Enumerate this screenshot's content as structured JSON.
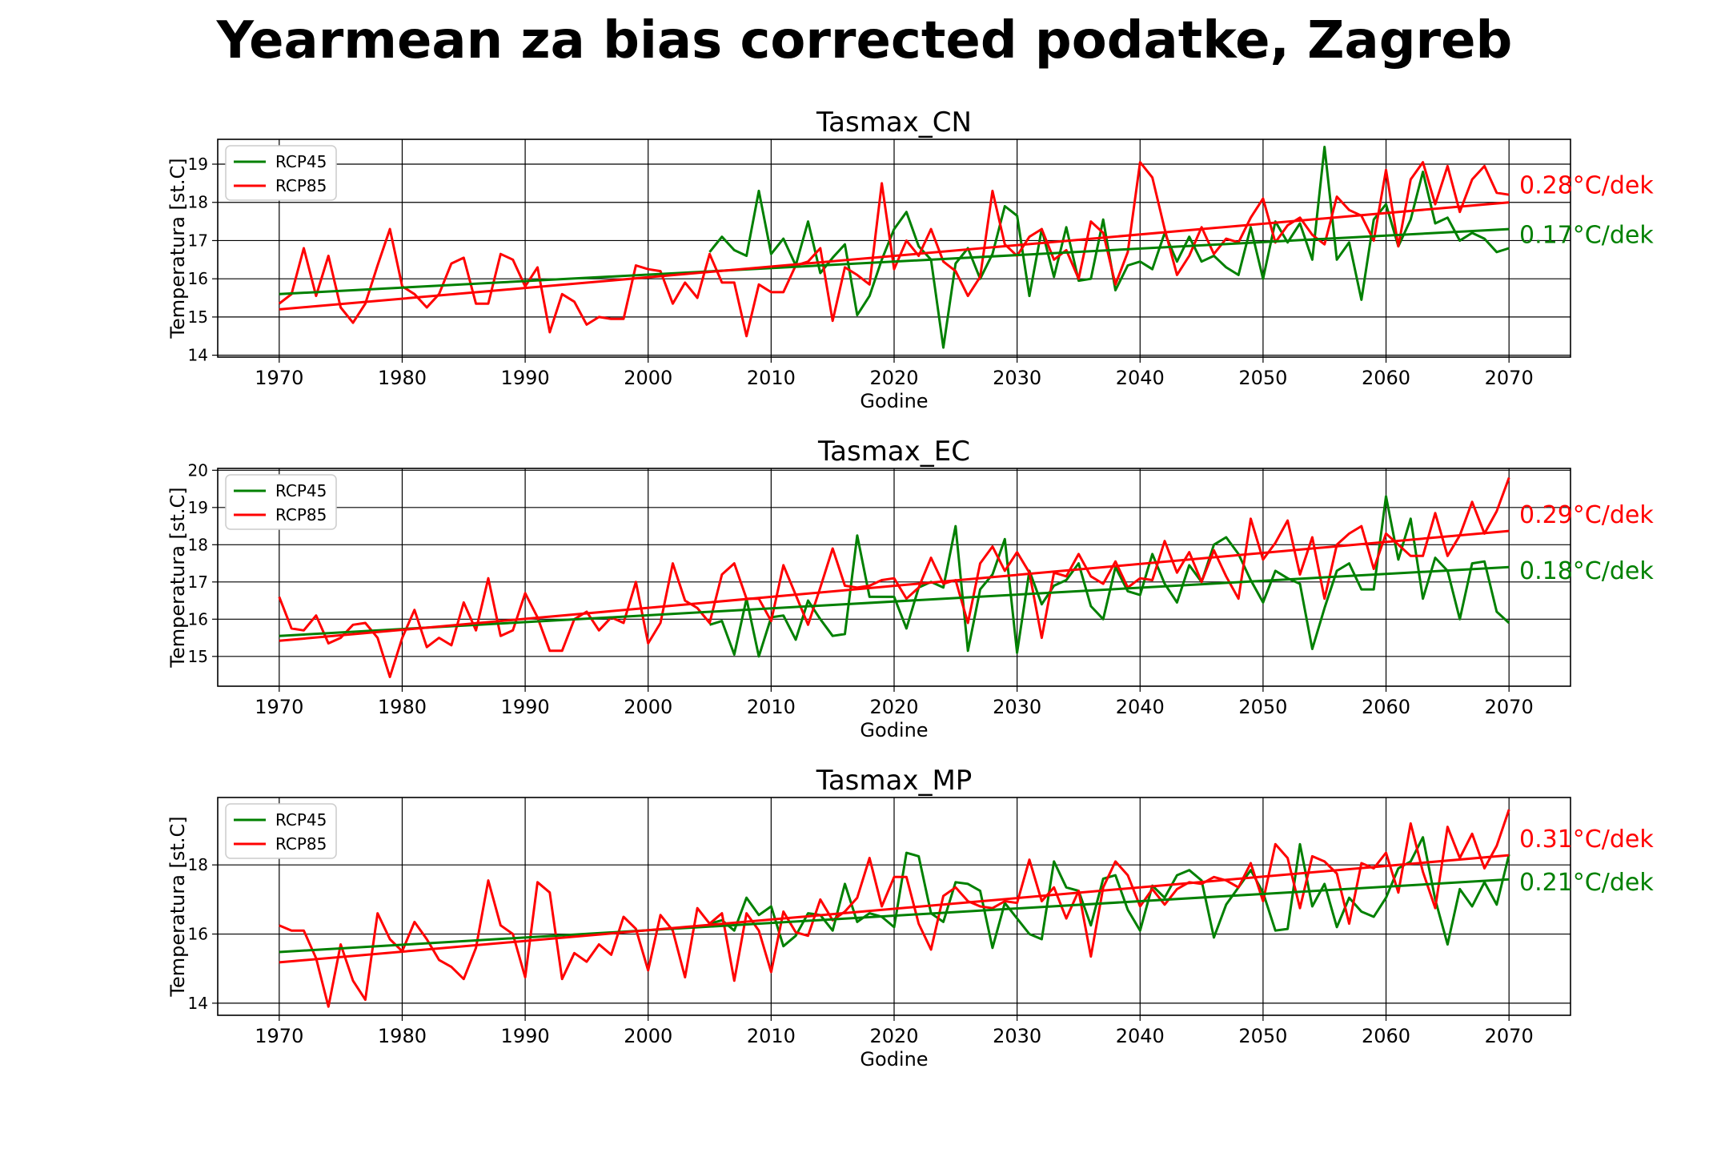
{
  "figure": {
    "title": "Yearmean za bias corrected podatke, Zagreb",
    "colors": {
      "RCP45": "#008000",
      "RCP85": "#ff0000",
      "grid": "#000000"
    }
  },
  "chart_data": [
    {
      "type": "line",
      "title": "Tasmax_CN",
      "xlabel": "Godine",
      "ylabel": "Temperatura [st.C]",
      "xlim": [
        1965,
        2075
      ],
      "ylim": [
        13.95,
        19.65
      ],
      "xticks": [
        1970,
        1980,
        1990,
        2000,
        2010,
        2020,
        2030,
        2040,
        2050,
        2060,
        2070
      ],
      "yticks": [
        14,
        15,
        16,
        17,
        18,
        19
      ],
      "grid": true,
      "legend": "upper-left",
      "series": [
        {
          "name": "RCP45",
          "color": "#008000",
          "x_start": 2005,
          "values": [
            16.7,
            17.1,
            16.75,
            16.6,
            18.3,
            16.65,
            17.05,
            16.35,
            17.5,
            16.15,
            16.55,
            16.9,
            15.05,
            15.55,
            16.5,
            17.3,
            17.75,
            16.85,
            16.5,
            14.2,
            16.4,
            16.8,
            16.0,
            16.65,
            17.9,
            17.65,
            15.55,
            17.3,
            16.05,
            17.35,
            15.95,
            16.0,
            17.55,
            15.7,
            16.35,
            16.45,
            16.25,
            17.2,
            16.45,
            17.1,
            16.45,
            16.6,
            16.3,
            16.1,
            17.35,
            16.0,
            17.5,
            16.95,
            17.45,
            16.5,
            19.45,
            16.5,
            16.95,
            15.45,
            17.55,
            17.95,
            16.85,
            17.55,
            18.8,
            17.45,
            17.6,
            17.0,
            17.2,
            17.05,
            16.7,
            16.8
          ]
        },
        {
          "name": "RCP85",
          "color": "#ff0000",
          "x_start": 1970,
          "values": [
            15.35,
            15.6,
            16.8,
            15.55,
            16.6,
            15.25,
            14.85,
            15.35,
            16.35,
            17.3,
            15.8,
            15.6,
            15.25,
            15.6,
            16.4,
            16.55,
            15.35,
            15.35,
            16.65,
            16.5,
            15.8,
            16.3,
            14.6,
            15.6,
            15.4,
            14.8,
            15.0,
            14.95,
            14.95,
            16.35,
            16.25,
            16.2,
            15.35,
            15.9,
            15.5,
            16.65,
            15.9,
            15.9,
            14.5,
            15.85,
            15.65,
            15.65,
            16.35,
            16.45,
            16.8,
            14.9,
            16.3,
            16.1,
            15.85,
            18.5,
            16.25,
            17.0,
            16.6,
            17.3,
            16.45,
            16.2,
            15.55,
            16.05,
            18.3,
            16.9,
            16.6,
            17.1,
            17.3,
            16.5,
            16.75,
            16.0,
            17.5,
            17.2,
            15.85,
            16.7,
            19.05,
            18.65,
            17.3,
            16.1,
            16.6,
            17.35,
            16.65,
            17.05,
            16.95,
            17.6,
            18.1,
            16.95,
            17.4,
            17.6,
            17.15,
            16.9,
            18.15,
            17.8,
            17.65,
            17.0,
            18.85,
            16.85,
            18.6,
            19.05,
            17.95,
            18.95,
            17.75,
            18.6,
            18.95,
            18.25,
            18.2
          ]
        },
        {
          "name": "trend RCP45",
          "color": "#008000",
          "x": [
            1970,
            2070
          ],
          "y": [
            15.6,
            17.3
          ]
        },
        {
          "name": "trend RCP85",
          "color": "#ff0000",
          "x": [
            1970,
            2070
          ],
          "y": [
            15.2,
            18.0
          ]
        }
      ],
      "annotations": [
        {
          "text": "0.28°C/dek",
          "color": "#ff0000",
          "y": 18.45
        },
        {
          "text": "0.17°C/dek",
          "color": "#008000",
          "y": 17.15
        }
      ]
    },
    {
      "type": "line",
      "title": "Tasmax_EC",
      "xlabel": "Godine",
      "ylabel": "Temperatura [st.C]",
      "xlim": [
        1965,
        2075
      ],
      "ylim": [
        14.2,
        20.05
      ],
      "xticks": [
        1970,
        1980,
        1990,
        2000,
        2010,
        2020,
        2030,
        2040,
        2050,
        2060,
        2070
      ],
      "yticks": [
        15,
        16,
        17,
        18,
        19,
        20
      ],
      "grid": true,
      "legend": "upper-left",
      "series": [
        {
          "name": "RCP45",
          "color": "#008000",
          "x_start": 2005,
          "values": [
            15.85,
            15.95,
            15.05,
            16.55,
            15.0,
            16.05,
            16.1,
            15.45,
            16.5,
            16.0,
            15.55,
            15.6,
            18.25,
            16.6,
            16.6,
            16.6,
            15.75,
            16.85,
            17.0,
            16.85,
            18.5,
            15.15,
            16.8,
            17.2,
            18.15,
            15.1,
            17.3,
            16.4,
            16.9,
            17.05,
            17.5,
            16.35,
            16.0,
            17.4,
            16.75,
            16.65,
            17.75,
            16.95,
            16.45,
            17.45,
            17.0,
            18.0,
            18.2,
            17.75,
            17.05,
            16.45,
            17.3,
            17.1,
            16.95,
            15.2,
            16.3,
            17.3,
            17.5,
            16.8,
            16.8,
            19.3,
            17.6,
            18.7,
            16.55,
            17.65,
            17.3,
            16.0,
            17.5,
            17.55,
            16.2,
            15.9
          ]
        },
        {
          "name": "RCP85",
          "color": "#ff0000",
          "x_start": 1970,
          "values": [
            16.6,
            15.75,
            15.7,
            16.1,
            15.35,
            15.5,
            15.85,
            15.9,
            15.5,
            14.45,
            15.5,
            16.25,
            15.25,
            15.5,
            15.3,
            16.45,
            15.7,
            17.1,
            15.55,
            15.7,
            16.7,
            16.05,
            15.15,
            15.15,
            16.0,
            16.2,
            15.7,
            16.05,
            15.9,
            17.0,
            15.35,
            15.9,
            17.5,
            16.5,
            16.3,
            15.9,
            17.2,
            17.5,
            16.55,
            16.55,
            15.95,
            17.45,
            16.65,
            15.85,
            16.85,
            17.9,
            16.9,
            16.85,
            16.9,
            17.05,
            17.1,
            16.55,
            16.85,
            17.65,
            16.95,
            17.05,
            15.9,
            17.5,
            17.95,
            17.3,
            17.8,
            17.25,
            15.5,
            17.25,
            17.15,
            17.75,
            17.15,
            16.95,
            17.55,
            16.85,
            17.1,
            17.05,
            18.1,
            17.25,
            17.8,
            17.0,
            17.85,
            17.15,
            16.55,
            18.7,
            17.6,
            18.05,
            18.65,
            17.2,
            18.2,
            16.55,
            18.0,
            18.3,
            18.5,
            17.35,
            18.3,
            18.0,
            17.7,
            17.7,
            18.85,
            17.7,
            18.25,
            19.15,
            18.3,
            18.9,
            19.8
          ]
        },
        {
          "name": "trend RCP45",
          "color": "#008000",
          "x": [
            1970,
            2070
          ],
          "y": [
            15.55,
            17.4
          ]
        },
        {
          "name": "trend RCP85",
          "color": "#ff0000",
          "x": [
            1970,
            2070
          ],
          "y": [
            15.42,
            18.37
          ]
        }
      ],
      "annotations": [
        {
          "text": "0.29°C/dek",
          "color": "#ff0000",
          "y": 18.8
        },
        {
          "text": "0.18°C/dek",
          "color": "#008000",
          "y": 17.3
        }
      ]
    },
    {
      "type": "line",
      "title": "Tasmax_MP",
      "xlabel": "Godine",
      "ylabel": "Temperatura [st.C]",
      "xlim": [
        1965,
        2075
      ],
      "ylim": [
        13.65,
        19.95
      ],
      "xticks": [
        1970,
        1980,
        1990,
        2000,
        2010,
        2020,
        2030,
        2040,
        2050,
        2060,
        2070
      ],
      "yticks": [
        14,
        16,
        18
      ],
      "grid": true,
      "legend": "upper-left",
      "series": [
        {
          "name": "RCP45",
          "color": "#008000",
          "x_start": 2005,
          "values": [
            16.3,
            16.4,
            16.1,
            17.05,
            16.55,
            16.8,
            15.65,
            15.95,
            16.6,
            16.55,
            16.1,
            17.45,
            16.35,
            16.6,
            16.5,
            16.2,
            18.35,
            18.25,
            16.6,
            16.35,
            17.5,
            17.45,
            17.25,
            15.6,
            16.9,
            16.45,
            16.0,
            15.85,
            18.1,
            17.35,
            17.25,
            16.25,
            17.6,
            17.7,
            16.7,
            16.1,
            17.4,
            17.05,
            17.7,
            17.85,
            17.55,
            15.9,
            16.85,
            17.35,
            17.85,
            17.2,
            16.1,
            16.15,
            18.6,
            16.8,
            17.45,
            16.2,
            17.05,
            16.65,
            16.5,
            17.05,
            17.9,
            18.1,
            18.8,
            17.0,
            15.7,
            17.3,
            16.8,
            17.5,
            16.85,
            18.3
          ]
        },
        {
          "name": "RCP85",
          "color": "#ff0000",
          "x_start": 1970,
          "values": [
            16.25,
            16.1,
            16.1,
            15.3,
            13.9,
            15.7,
            14.65,
            14.1,
            16.6,
            15.85,
            15.5,
            16.35,
            15.85,
            15.25,
            15.05,
            14.7,
            15.6,
            17.55,
            16.25,
            16.0,
            14.75,
            17.5,
            17.2,
            14.7,
            15.45,
            15.2,
            15.7,
            15.4,
            16.5,
            16.15,
            14.95,
            16.55,
            16.1,
            14.75,
            16.75,
            16.3,
            16.6,
            14.65,
            16.6,
            16.1,
            14.9,
            16.65,
            16.05,
            15.95,
            17.0,
            16.4,
            16.65,
            17.05,
            18.2,
            16.8,
            17.65,
            17.65,
            16.3,
            15.55,
            17.1,
            17.35,
            16.95,
            16.8,
            16.75,
            16.95,
            16.9,
            18.15,
            16.95,
            17.35,
            16.45,
            17.25,
            15.35,
            17.35,
            18.1,
            17.7,
            16.8,
            17.3,
            16.85,
            17.3,
            17.5,
            17.45,
            17.65,
            17.55,
            17.35,
            18.05,
            16.95,
            18.6,
            18.2,
            16.75,
            18.25,
            18.1,
            17.75,
            16.3,
            18.05,
            17.9,
            18.35,
            17.2,
            19.2,
            17.8,
            16.75,
            19.1,
            18.2,
            18.9,
            17.9,
            18.55,
            19.6
          ]
        },
        {
          "name": "trend RCP45",
          "color": "#008000",
          "x": [
            1970,
            2070
          ],
          "y": [
            15.48,
            17.58
          ]
        },
        {
          "name": "trend RCP85",
          "color": "#ff0000",
          "x": [
            1970,
            2070
          ],
          "y": [
            15.18,
            18.28
          ]
        }
      ],
      "annotations": [
        {
          "text": "0.31°C/dek",
          "color": "#ff0000",
          "y": 18.75
        },
        {
          "text": "0.21°C/dek",
          "color": "#008000",
          "y": 17.5
        }
      ]
    }
  ]
}
